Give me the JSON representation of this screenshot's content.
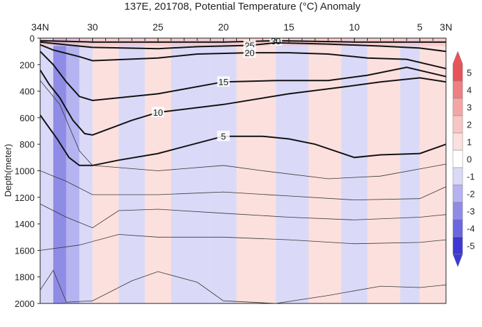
{
  "chart_data": {
    "type": "heatmap",
    "title": "137E, 201708, Potential Temperature (°C) Anomaly",
    "ylabel": "Depth(meter)",
    "x_ticks": [
      {
        "lat": 34,
        "label": "34N"
      },
      {
        "lat": 30,
        "label": "30"
      },
      {
        "lat": 25,
        "label": "25"
      },
      {
        "lat": 20,
        "label": "20"
      },
      {
        "lat": 15,
        "label": "15"
      },
      {
        "lat": 10,
        "label": "10"
      },
      {
        "lat": 5,
        "label": "5"
      },
      {
        "lat": 3,
        "label": "3N"
      }
    ],
    "xlim": [
      34,
      3
    ],
    "y_ticks": [
      0,
      200,
      400,
      600,
      800,
      1000,
      1200,
      1400,
      1600,
      1800,
      2000
    ],
    "ylim": [
      0,
      2000
    ],
    "colorbar": {
      "levels": [
        5,
        4,
        3,
        2,
        1,
        0,
        -1,
        -2,
        -3,
        -4,
        -5
      ],
      "colors": [
        "#e8525a",
        "#ee7f82",
        "#f4a6a6",
        "#f7c6c4",
        "#fbe0de",
        "#ffffff",
        "#dad9f7",
        "#b5b3f0",
        "#8f8ce6",
        "#6b67de",
        "#3e39d4"
      ]
    },
    "anomaly_bands": [
      {
        "lat_from": 34,
        "lat_to": 33,
        "anomaly": -0.5
      },
      {
        "lat_from": 33,
        "lat_to": 32,
        "anomaly": -2.5
      },
      {
        "lat_from": 32,
        "lat_to": 31,
        "anomaly": -1.5
      },
      {
        "lat_from": 31,
        "lat_to": 30,
        "anomaly": -0.5
      },
      {
        "lat_from": 30,
        "lat_to": 28,
        "anomaly": 0.5
      },
      {
        "lat_from": 28,
        "lat_to": 26,
        "anomaly": -0.5
      },
      {
        "lat_from": 26,
        "lat_to": 24,
        "anomaly": 0.5
      },
      {
        "lat_from": 24,
        "lat_to": 21,
        "anomaly": -0.5
      },
      {
        "lat_from": 21,
        "lat_to": 19,
        "anomaly": -0.5
      },
      {
        "lat_from": 19,
        "lat_to": 16,
        "anomaly": 0.5
      },
      {
        "lat_from": 16,
        "lat_to": 13.5,
        "anomaly": -0.5
      },
      {
        "lat_from": 13.5,
        "lat_to": 11,
        "anomaly": 0.5
      },
      {
        "lat_from": 11,
        "lat_to": 9,
        "anomaly": -0.5
      },
      {
        "lat_from": 9,
        "lat_to": 6.5,
        "anomaly": 0.5
      },
      {
        "lat_from": 6.5,
        "lat_to": 5,
        "anomaly": -0.5
      },
      {
        "lat_from": 5,
        "lat_to": 3,
        "anomaly": 0.5
      }
    ],
    "surface_anomaly_layer": {
      "depth_to": 60,
      "anomaly": 1.5
    },
    "contours": [
      {
        "temp": 30,
        "labeled": true,
        "points": [
          [
            34,
            20
          ],
          [
            30,
            30
          ],
          [
            25,
            30
          ],
          [
            20,
            30
          ],
          [
            16,
            20
          ],
          [
            10,
            30
          ],
          [
            5,
            30
          ],
          [
            3,
            30
          ]
        ]
      },
      {
        "temp": 25,
        "labeled": true,
        "points": [
          [
            34,
            30
          ],
          [
            32,
            50
          ],
          [
            30,
            70
          ],
          [
            25,
            80
          ],
          [
            22,
            65
          ],
          [
            18,
            55
          ],
          [
            16,
            35
          ],
          [
            12,
            45
          ],
          [
            8,
            60
          ],
          [
            5,
            75
          ],
          [
            3,
            100
          ]
        ]
      },
      {
        "temp": 20,
        "labeled": true,
        "points": [
          [
            34,
            50
          ],
          [
            33,
            90
          ],
          [
            31,
            140
          ],
          [
            30,
            170
          ],
          [
            25,
            150
          ],
          [
            22,
            120
          ],
          [
            18,
            110
          ],
          [
            15,
            110
          ],
          [
            12,
            120
          ],
          [
            9,
            150
          ],
          [
            6,
            160
          ],
          [
            3,
            230
          ]
        ]
      },
      {
        "temp": 15,
        "labeled": true,
        "points": [
          [
            34,
            100
          ],
          [
            33,
            200
          ],
          [
            32,
            330
          ],
          [
            31,
            440
          ],
          [
            30,
            470
          ],
          [
            25,
            420
          ],
          [
            20,
            330
          ],
          [
            16,
            320
          ],
          [
            12,
            320
          ],
          [
            9,
            280
          ],
          [
            6,
            220
          ],
          [
            3,
            290
          ]
        ]
      },
      {
        "temp": 10,
        "labeled": true,
        "points": [
          [
            34,
            240
          ],
          [
            33.3,
            350
          ],
          [
            32.5,
            450
          ],
          [
            31.5,
            620
          ],
          [
            30.6,
            720
          ],
          [
            30,
            730
          ],
          [
            27,
            620
          ],
          [
            25,
            560
          ],
          [
            20,
            500
          ],
          [
            15,
            420
          ],
          [
            11,
            370
          ],
          [
            8,
            330
          ],
          [
            5,
            300
          ],
          [
            3,
            330
          ]
        ]
      },
      {
        "temp": 5,
        "labeled": true,
        "points": [
          [
            34,
            580
          ],
          [
            33.5,
            650
          ],
          [
            32.7,
            760
          ],
          [
            31.8,
            900
          ],
          [
            31,
            960
          ],
          [
            30,
            960
          ],
          [
            28,
            920
          ],
          [
            25,
            870
          ],
          [
            20,
            740
          ],
          [
            17,
            740
          ],
          [
            15,
            760
          ],
          [
            13,
            800
          ],
          [
            10,
            900
          ],
          [
            8,
            880
          ],
          [
            5,
            870
          ],
          [
            3,
            800
          ]
        ]
      }
    ],
    "thin_contours": [
      [
        [
          34,
          320
        ],
        [
          32.5,
          500
        ],
        [
          31,
          850
        ],
        [
          30,
          960
        ],
        [
          25,
          1000
        ],
        [
          20,
          960
        ],
        [
          17,
          1000
        ],
        [
          12,
          1060
        ],
        [
          8,
          1040
        ],
        [
          3,
          950
        ]
      ],
      [
        [
          34,
          1000
        ],
        [
          32,
          1080
        ],
        [
          30,
          1180
        ],
        [
          25,
          1180
        ],
        [
          20,
          1160
        ],
        [
          15,
          1190
        ],
        [
          10,
          1220
        ],
        [
          5,
          1210
        ],
        [
          3,
          1120
        ]
      ],
      [
        [
          34,
          1250
        ],
        [
          32,
          1350
        ],
        [
          30,
          1430
        ],
        [
          28,
          1300
        ],
        [
          25,
          1290
        ],
        [
          20,
          1320
        ],
        [
          15,
          1350
        ],
        [
          10,
          1370
        ],
        [
          5,
          1350
        ],
        [
          3,
          1330
        ]
      ],
      [
        [
          34,
          1600
        ],
        [
          31,
          1560
        ],
        [
          28,
          1480
        ],
        [
          25,
          1500
        ],
        [
          20,
          1500
        ],
        [
          15,
          1520
        ],
        [
          10,
          1550
        ],
        [
          5,
          1540
        ],
        [
          3,
          1520
        ]
      ],
      [
        [
          34,
          1900
        ],
        [
          33,
          1750
        ],
        [
          32,
          1990
        ],
        [
          30,
          1980
        ],
        [
          27,
          1830
        ],
        [
          25,
          1760
        ],
        [
          22,
          1840
        ],
        [
          20,
          1980
        ],
        [
          16,
          2000
        ],
        [
          12,
          1940
        ],
        [
          8,
          1870
        ],
        [
          5,
          1880
        ],
        [
          3,
          1860
        ]
      ]
    ]
  }
}
